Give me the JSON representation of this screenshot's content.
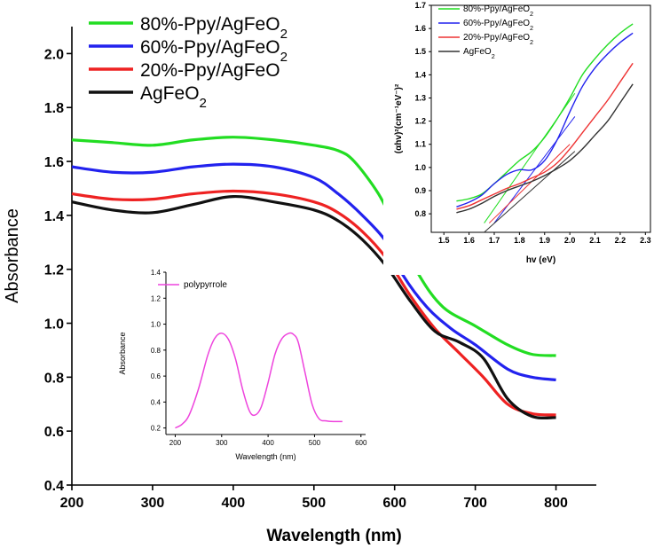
{
  "chart_data": [
    {
      "id": "main",
      "type": "line",
      "title": "",
      "xlabel": "Wavelength (nm)",
      "ylabel": "Absorbance",
      "xlim": [
        200,
        850
      ],
      "ylim": [
        0.4,
        2.1
      ],
      "xticks": [
        200,
        300,
        400,
        500,
        600,
        700,
        800
      ],
      "yticks": [
        0.4,
        0.6,
        0.8,
        1.0,
        1.2,
        1.4,
        1.6,
        1.8,
        2.0
      ],
      "xtick_labels": [
        "200",
        "300",
        "400",
        "500",
        "600",
        "700",
        "800"
      ],
      "ytick_labels": [
        "0.4",
        "0.6",
        "0.8",
        "1.0",
        "1.2",
        "1.4",
        "1.6",
        "1.8",
        "2.0"
      ],
      "legend_position": "top-left",
      "series": [
        {
          "name": "80%-Ppy/AgFeO",
          "subscript": "2",
          "color": "#22dd22",
          "x": [
            200,
            250,
            300,
            350,
            400,
            450,
            500,
            530,
            550,
            580,
            600,
            630,
            660,
            700,
            740,
            770,
            800
          ],
          "y": [
            1.68,
            1.67,
            1.66,
            1.68,
            1.69,
            1.68,
            1.66,
            1.64,
            1.6,
            1.48,
            1.36,
            1.18,
            1.06,
            0.99,
            0.92,
            0.885,
            0.88
          ]
        },
        {
          "name": "60%-Ppy/AgFeO",
          "subscript": "2",
          "color": "#2222ee",
          "x": [
            200,
            250,
            300,
            350,
            400,
            450,
            500,
            530,
            560,
            590,
            610,
            640,
            670,
            700,
            740,
            770,
            800
          ],
          "y": [
            1.58,
            1.56,
            1.56,
            1.58,
            1.59,
            1.58,
            1.54,
            1.48,
            1.4,
            1.3,
            1.18,
            1.06,
            0.98,
            0.92,
            0.83,
            0.8,
            0.79
          ]
        },
        {
          "name": "20%-Ppy/AgFeO",
          "subscript": "",
          "color": "#ee2222",
          "x": [
            200,
            250,
            300,
            350,
            400,
            450,
            500,
            530,
            560,
            590,
            620,
            650,
            680,
            710,
            740,
            770,
            800
          ],
          "y": [
            1.48,
            1.46,
            1.46,
            1.48,
            1.49,
            1.48,
            1.45,
            1.41,
            1.34,
            1.24,
            1.1,
            0.98,
            0.89,
            0.8,
            0.7,
            0.665,
            0.66
          ]
        },
        {
          "name": "AgFeO",
          "subscript": "2",
          "color": "#111111",
          "x": [
            200,
            250,
            300,
            350,
            400,
            450,
            500,
            530,
            560,
            590,
            620,
            650,
            680,
            710,
            740,
            770,
            800
          ],
          "y": [
            1.45,
            1.42,
            1.41,
            1.44,
            1.47,
            1.45,
            1.42,
            1.38,
            1.31,
            1.21,
            1.08,
            0.97,
            0.93,
            0.87,
            0.72,
            0.655,
            0.65
          ]
        }
      ]
    },
    {
      "id": "inset-polypyrrole",
      "type": "line",
      "title": "",
      "xlabel": "Wavelength (nm)",
      "ylabel": "Absorbance",
      "xlim": [
        180,
        610
      ],
      "ylim": [
        0.15,
        1.4
      ],
      "xticks": [
        200,
        300,
        400,
        500,
        600
      ],
      "yticks": [
        0.2,
        0.4,
        0.6,
        0.8,
        1.0,
        1.2,
        1.4
      ],
      "xtick_labels": [
        "200",
        "300",
        "400",
        "500",
        "600"
      ],
      "ytick_labels": [
        "0.2",
        "0.4",
        "0.6",
        "0.8",
        "1.0",
        "1.2",
        "1.4"
      ],
      "legend_position": "top-left",
      "series": [
        {
          "name": "polypyrrole",
          "color": "#ee44dd",
          "x": [
            200,
            215,
            230,
            250,
            270,
            285,
            300,
            315,
            330,
            345,
            360,
            372,
            385,
            400,
            415,
            430,
            445,
            455,
            465,
            480,
            495,
            510,
            525,
            540,
            560
          ],
          "y": [
            0.2,
            0.23,
            0.3,
            0.5,
            0.76,
            0.89,
            0.93,
            0.88,
            0.73,
            0.5,
            0.33,
            0.3,
            0.36,
            0.55,
            0.77,
            0.89,
            0.93,
            0.92,
            0.86,
            0.62,
            0.38,
            0.27,
            0.255,
            0.25,
            0.25
          ]
        }
      ]
    },
    {
      "id": "inset-tauc",
      "type": "line",
      "title": "",
      "xlabel": "hv (eV)",
      "ylabel": "(αhv)²(cm⁻¹eV⁻)²",
      "xlim": [
        1.45,
        2.32
      ],
      "ylim": [
        0.72,
        1.7
      ],
      "xticks": [
        1.5,
        1.6,
        1.7,
        1.8,
        1.9,
        2.0,
        2.1,
        2.2,
        2.3
      ],
      "yticks": [
        0.8,
        0.9,
        1.0,
        1.1,
        1.2,
        1.3,
        1.4,
        1.5,
        1.6,
        1.7
      ],
      "xtick_labels": [
        "1.5",
        "1.6",
        "1.7",
        "1.8",
        "1.9",
        "2.0",
        "2.1",
        "2.2",
        "2.3"
      ],
      "ytick_labels": [
        "0.8",
        "0.9",
        "1.0",
        "1.1",
        "1.2",
        "1.3",
        "1.4",
        "1.5",
        "1.6",
        "1.7"
      ],
      "legend_position": "top-left",
      "series": [
        {
          "name": "80%-Ppy/AgFeO",
          "subscript": "2",
          "color": "#22dd22",
          "x": [
            1.55,
            1.6,
            1.65,
            1.7,
            1.75,
            1.8,
            1.85,
            1.9,
            1.95,
            2.0,
            2.05,
            2.1,
            2.15,
            2.2,
            2.25
          ],
          "y": [
            0.855,
            0.865,
            0.885,
            0.93,
            0.98,
            1.03,
            1.07,
            1.13,
            1.21,
            1.3,
            1.4,
            1.47,
            1.53,
            1.58,
            1.62
          ]
        },
        {
          "name": "60%-Ppy/AgFeO",
          "subscript": "2",
          "color": "#2222ee",
          "x": [
            1.55,
            1.6,
            1.65,
            1.7,
            1.75,
            1.8,
            1.85,
            1.9,
            1.95,
            2.0,
            2.05,
            2.1,
            2.15,
            2.2,
            2.25
          ],
          "y": [
            0.83,
            0.85,
            0.88,
            0.93,
            0.97,
            0.99,
            0.99,
            1.03,
            1.12,
            1.24,
            1.35,
            1.43,
            1.49,
            1.54,
            1.58
          ]
        },
        {
          "name": "20%-Ppy/AgFeO",
          "subscript": "2",
          "color": "#ee3333",
          "x": [
            1.55,
            1.6,
            1.65,
            1.7,
            1.75,
            1.8,
            1.85,
            1.9,
            1.95,
            2.0,
            2.05,
            2.1,
            2.15,
            2.2,
            2.25
          ],
          "y": [
            0.82,
            0.835,
            0.86,
            0.885,
            0.91,
            0.93,
            0.955,
            0.98,
            1.02,
            1.08,
            1.15,
            1.22,
            1.29,
            1.37,
            1.45
          ]
        },
        {
          "name": "AgFeO",
          "subscript": "2",
          "color": "#333333",
          "x": [
            1.55,
            1.6,
            1.65,
            1.7,
            1.75,
            1.8,
            1.85,
            1.9,
            1.95,
            2.0,
            2.05,
            2.1,
            2.15,
            2.2,
            2.25
          ],
          "y": [
            0.805,
            0.82,
            0.845,
            0.875,
            0.9,
            0.92,
            0.94,
            0.965,
            0.995,
            1.03,
            1.08,
            1.14,
            1.2,
            1.28,
            1.36
          ]
        }
      ],
      "fit_lines": [
        {
          "series": "80%-Ppy/AgFeO2",
          "color": "#22dd22",
          "x": [
            1.66,
            2.02
          ],
          "y": [
            0.76,
            1.32
          ]
        },
        {
          "series": "60%-Ppy/AgFeO2",
          "color": "#2222ee",
          "x": [
            1.7,
            2.02
          ],
          "y": [
            0.76,
            1.22
          ]
        },
        {
          "series": "20%-Ppy/AgFeO2",
          "color": "#ee3333",
          "x": [
            1.68,
            2.0
          ],
          "y": [
            0.76,
            1.1
          ]
        },
        {
          "series": "AgFeO2",
          "color": "#333333",
          "x": [
            1.66,
            2.02
          ],
          "y": [
            0.72,
            1.07
          ]
        }
      ]
    }
  ]
}
